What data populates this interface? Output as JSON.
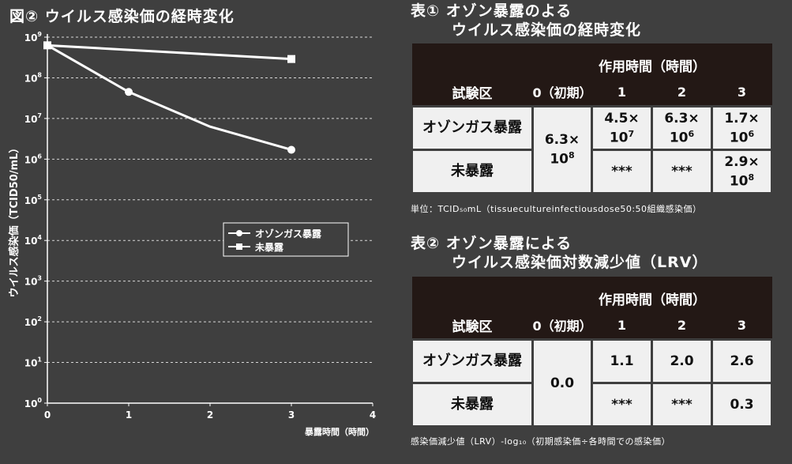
{
  "figure": {
    "title": "図② ウイルス感染価の経時変化"
  },
  "chart_data": {
    "type": "line",
    "xlabel": "暴露時間（時間）",
    "ylabel": "ウイルス感染価（TCID50/mL）",
    "xlim": [
      0,
      4
    ],
    "x_ticks": [
      "0",
      "1",
      "2",
      "3",
      "4"
    ],
    "y_scale": "log",
    "ylim_exponent": [
      0,
      9
    ],
    "y_ticks": [
      {
        "base": "10",
        "exp": "0"
      },
      {
        "base": "10",
        "exp": "1"
      },
      {
        "base": "10",
        "exp": "2"
      },
      {
        "base": "10",
        "exp": "3"
      },
      {
        "base": "10",
        "exp": "4"
      },
      {
        "base": "10",
        "exp": "5"
      },
      {
        "base": "10",
        "exp": "6"
      },
      {
        "base": "10",
        "exp": "7"
      },
      {
        "base": "10",
        "exp": "8"
      },
      {
        "base": "10",
        "exp": "9"
      }
    ],
    "grid": "dashed-horizontal",
    "legend_position": "right-middle",
    "series": [
      {
        "name": "オゾンガス暴露",
        "marker": "circle",
        "x": [
          0,
          1,
          2,
          3
        ],
        "y": [
          630000000.0,
          45000000.0,
          6300000.0,
          1700000.0
        ],
        "point_markers": [
          true,
          true,
          false,
          true
        ]
      },
      {
        "name": "未暴露",
        "marker": "square",
        "x": [
          0,
          3
        ],
        "y": [
          630000000.0,
          290000000.0
        ],
        "point_markers": [
          true,
          true
        ]
      }
    ]
  },
  "table1": {
    "title_line1": "表① オゾン暴露のよる",
    "title_line2": "ウイルス感染価の経時変化",
    "corner": "試験区",
    "group_header": "作用時間（時間）",
    "hours": [
      "0（初期）",
      "1",
      "2",
      "3"
    ],
    "rows": [
      {
        "label": "オゾンガス暴露",
        "v1": {
          "m": "4.5×",
          "b": "10",
          "e": "7"
        },
        "v2": {
          "m": "6.3×",
          "b": "10",
          "e": "6"
        },
        "v3": {
          "m": "1.7×",
          "b": "10",
          "e": "6"
        }
      },
      {
        "label": "未暴露",
        "v1": "***",
        "v2": "***",
        "v3": {
          "m": "2.9×",
          "b": "10",
          "e": "8"
        }
      }
    ],
    "initial": {
      "m": "6.3×",
      "b": "10",
      "e": "8"
    },
    "note": "単位：TCID₅₀mL（tissuecultureinfectiousdose50:50組織感染価）"
  },
  "table2": {
    "title_line1": "表② オゾン暴露による",
    "title_line2": "ウイルス感染価対数減少値（LRV）",
    "corner": "試験区",
    "group_header": "作用時間（時間）",
    "hours": [
      "0（初期）",
      "1",
      "2",
      "3"
    ],
    "rows": [
      {
        "label": "オゾンガス暴露",
        "v1": "1.1",
        "v2": "2.0",
        "v3": "2.6"
      },
      {
        "label": "未暴露",
        "v1": "***",
        "v2": "***",
        "v3": "0.3"
      }
    ],
    "initial": "0.0",
    "note": "感染価減少値（LRV）-log₁₀（初期感染価÷各時間での感染価）"
  }
}
